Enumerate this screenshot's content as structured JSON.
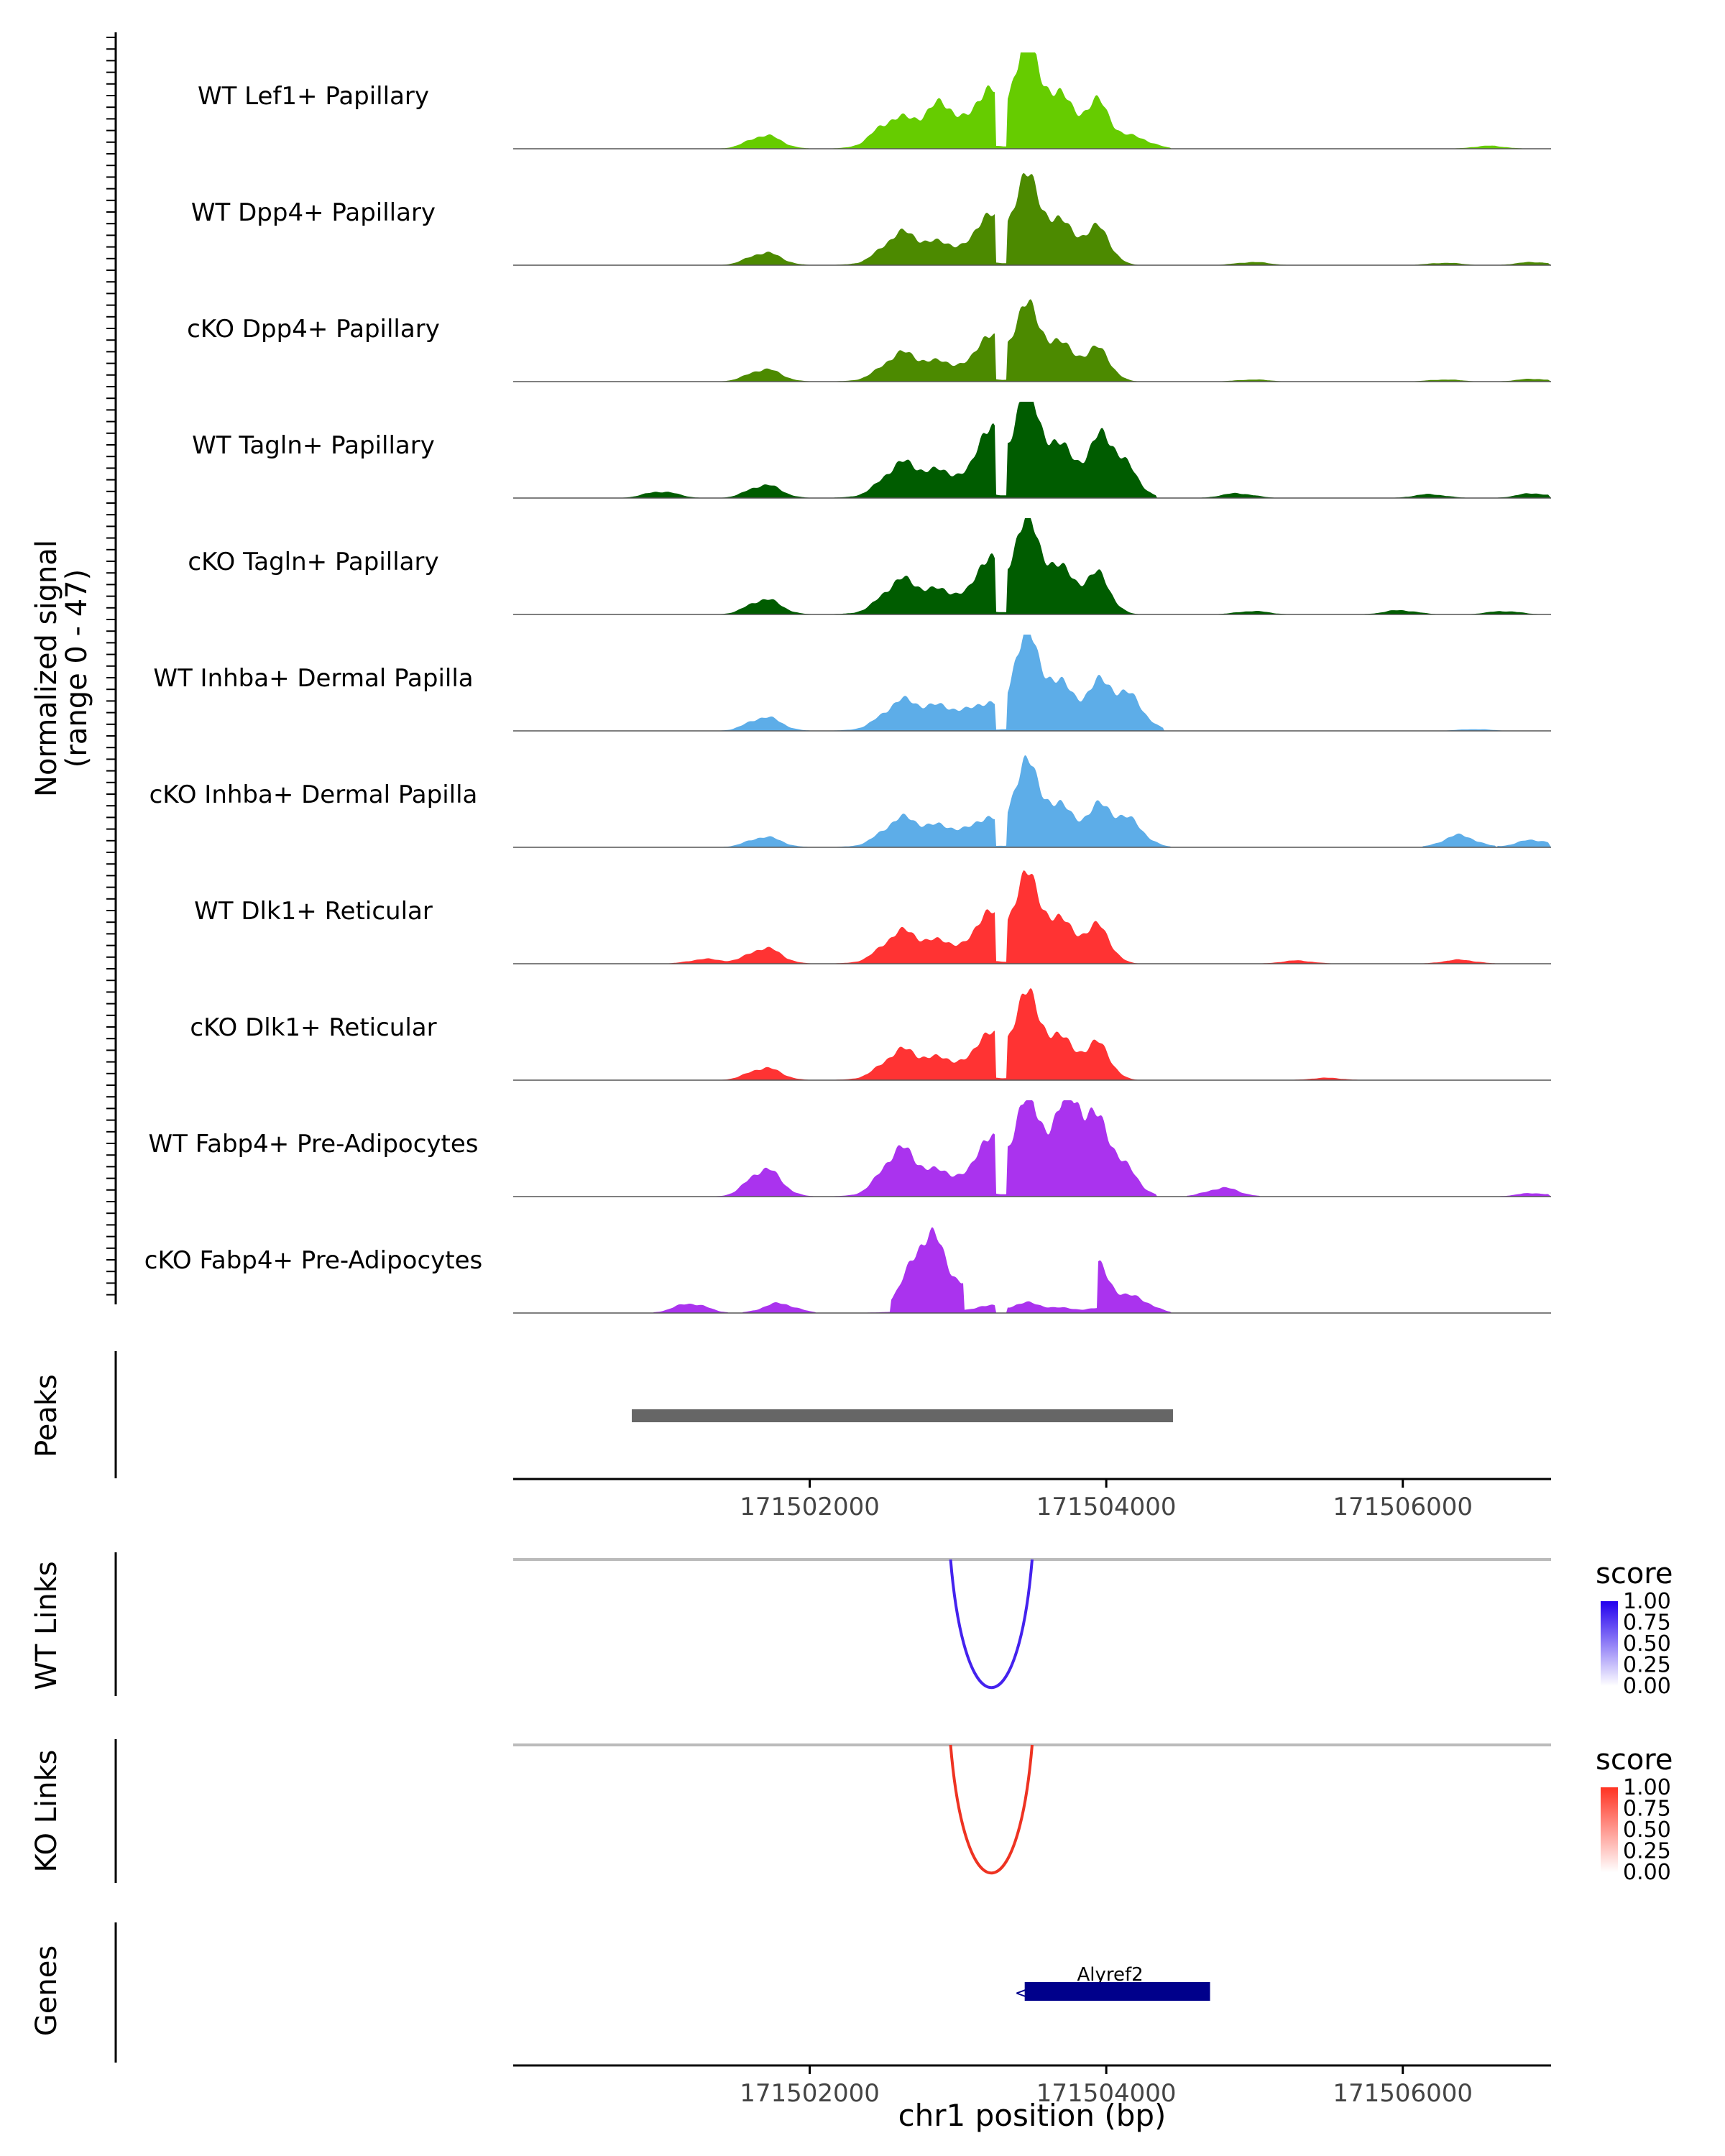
{
  "chart_data": {
    "type": "area",
    "title": "",
    "coverage": {
      "ylabel": "Normalized signal",
      "ylabel_range": "(range 0 - 47)",
      "ylim": [
        0,
        47
      ],
      "x_range": [
        171500000,
        171507000
      ],
      "peak_center": 171503350,
      "tracks": [
        {
          "name": "WT Lef1+ Papillary",
          "color": "#66CC00",
          "scale": 1.0,
          "left_peak": 0.55,
          "right_peak": 0.98,
          "ext": 171504400,
          "bumps": [
            [
              171501700,
              0.14
            ],
            [
              171502550,
              0.2
            ],
            [
              171502900,
              0.18
            ],
            [
              171504200,
              0.12
            ],
            [
              171506600,
              0.03
            ]
          ]
        },
        {
          "name": "WT Dpp4+ Papillary",
          "color": "#4C8A00",
          "scale": 0.82,
          "left_peak": 0.58,
          "right_peak": 1.0,
          "ext": 171504400,
          "bumps": [
            [
              171501700,
              0.16
            ],
            [
              171502600,
              0.26
            ],
            [
              171505000,
              0.04
            ],
            [
              171506300,
              0.03
            ],
            [
              171506900,
              0.04
            ]
          ]
        },
        {
          "name": "cKO Dpp4+ Papillary",
          "color": "#4C8A00",
          "scale": 0.72,
          "left_peak": 0.6,
          "right_peak": 0.98,
          "ext": 171504450,
          "bumps": [
            [
              171501700,
              0.18
            ],
            [
              171502600,
              0.26
            ],
            [
              171505000,
              0.03
            ],
            [
              171506300,
              0.03
            ],
            [
              171506900,
              0.04
            ]
          ]
        },
        {
          "name": "WT Tagln+ Papillary",
          "color": "#005C00",
          "scale": 0.98,
          "left_peak": 0.68,
          "right_peak": 1.0,
          "ext": 171504350,
          "bumps": [
            [
              171501000,
              0.07
            ],
            [
              171501700,
              0.14
            ],
            [
              171502600,
              0.22
            ],
            [
              171504100,
              0.38
            ],
            [
              171504900,
              0.05
            ],
            [
              171506200,
              0.04
            ],
            [
              171506900,
              0.05
            ]
          ]
        },
        {
          "name": "cKO Tagln+ Papillary",
          "color": "#005C00",
          "scale": 0.88,
          "left_peak": 0.6,
          "right_peak": 1.0,
          "ext": 171504450,
          "bumps": [
            [
              171501700,
              0.18
            ],
            [
              171502600,
              0.26
            ],
            [
              171505000,
              0.04
            ],
            [
              171506000,
              0.05
            ],
            [
              171506700,
              0.04
            ]
          ]
        },
        {
          "name": "WT Inhba+ Dermal Papilla",
          "color": "#5DADE8",
          "scale": 0.9,
          "left_peak": 0.22,
          "right_peak": 1.0,
          "ext": 171504400,
          "bumps": [
            [
              171501700,
              0.16
            ],
            [
              171502600,
              0.2
            ],
            [
              171504150,
              0.4
            ],
            [
              171506500,
              0.02
            ]
          ]
        },
        {
          "name": "cKO Inhba+ Dermal Papilla",
          "color": "#5DADE8",
          "scale": 0.78,
          "left_peak": 0.3,
          "right_peak": 1.0,
          "ext": 171504450,
          "bumps": [
            [
              171501700,
              0.14
            ],
            [
              171502600,
              0.24
            ],
            [
              171504150,
              0.36
            ],
            [
              171506400,
              0.16
            ],
            [
              171506900,
              0.1
            ]
          ]
        },
        {
          "name": "WT Dlk1+ Reticular",
          "color": "#FF3333",
          "scale": 0.82,
          "left_peak": 0.6,
          "right_peak": 1.0,
          "ext": 171504400,
          "bumps": [
            [
              171501300,
              0.06
            ],
            [
              171501700,
              0.2
            ],
            [
              171502600,
              0.26
            ],
            [
              171505300,
              0.04
            ],
            [
              171506400,
              0.05
            ]
          ]
        },
        {
          "name": "cKO Dlk1+ Reticular",
          "color": "#FF3333",
          "scale": 0.8,
          "left_peak": 0.55,
          "right_peak": 1.0,
          "ext": 171504450,
          "bumps": [
            [
              171501700,
              0.16
            ],
            [
              171502600,
              0.24
            ],
            [
              171505500,
              0.03
            ],
            [
              171006500,
              0.03
            ]
          ]
        },
        {
          "name": "WT Fabp4+ Pre-Adipocytes",
          "color": "#AA33EE",
          "scale": 0.9,
          "left_peak": 0.62,
          "right_peak": 1.0,
          "ext": 171504300,
          "bumps": [
            [
              171501700,
              0.32
            ],
            [
              171502600,
              0.4
            ],
            [
              171503800,
              0.7
            ],
            [
              171504100,
              0.36
            ],
            [
              171504800,
              0.1
            ],
            [
              171506900,
              0.04
            ]
          ]
        },
        {
          "name": "cKO Fabp4+ Pre-Adipocytes",
          "color": "#AA33EE",
          "scale": 1.0,
          "left_peak": 0.75,
          "right_peak": 0.96,
          "ext": 171004200,
          "bumps": [
            [
              171501200,
              0.1
            ],
            [
              171501800,
              0.1
            ],
            [
              171502800,
              0.55
            ],
            [
              171504200,
              0.16
            ]
          ]
        }
      ]
    },
    "peaks": {
      "label": "Peaks",
      "start": 171500800,
      "end": 171504450,
      "color": "#666666"
    },
    "x_axis": {
      "label": "chr1 position (bp)",
      "ticks": [
        171502000,
        171504000,
        171506000
      ],
      "tick_labels": [
        "171502000",
        "171504000",
        "171506000"
      ]
    },
    "wt_links": {
      "label": "WT Links",
      "start": 171502950,
      "end": 171503500,
      "score": 1.0,
      "color": "#4422EE"
    },
    "ko_links": {
      "label": "KO Links",
      "start": 171502950,
      "end": 171503500,
      "score": 1.0,
      "color": "#EE3322"
    },
    "legends": [
      {
        "title": "score",
        "high_color": "#2200EE",
        "labels": [
          "1.00",
          "0.75",
          "0.50",
          "0.25",
          "0.00"
        ]
      },
      {
        "title": "score",
        "high_color": "#FF3322",
        "labels": [
          "1.00",
          "0.75",
          "0.50",
          "0.25",
          "0.00"
        ]
      }
    ],
    "genes": {
      "label": "Genes",
      "gene_name": "Alyref2",
      "start": 171503450,
      "end": 171504700,
      "strand": "-",
      "color": "#00008B"
    }
  }
}
